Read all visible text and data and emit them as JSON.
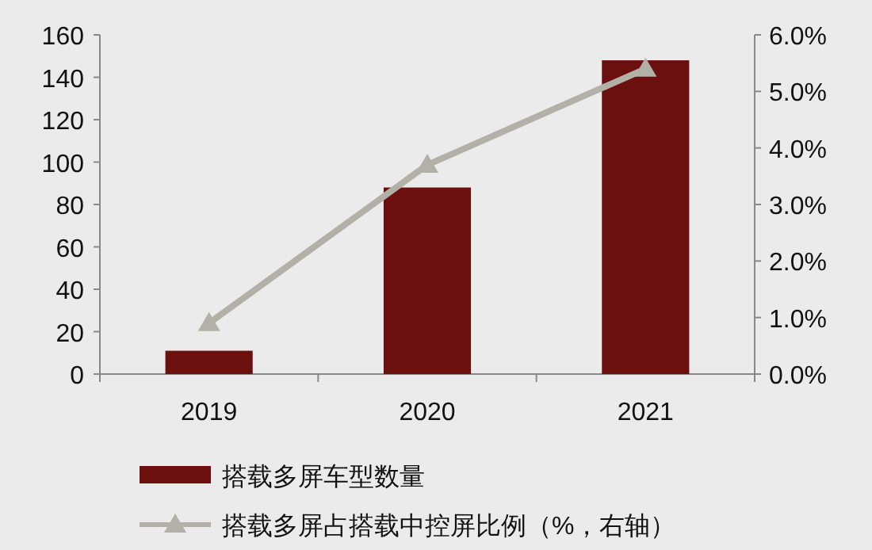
{
  "chart_data": {
    "type": "bar",
    "categories": [
      "2019",
      "2020",
      "2021"
    ],
    "series": [
      {
        "name": "搭载多屏车型数量",
        "color": "#6b0f0f",
        "values": [
          11,
          88,
          148
        ]
      },
      {
        "name": "搭载多屏占搭载中控屏比例（%，右轴）",
        "type": "line",
        "axis": "y2",
        "color": "#b2b1a8",
        "marker": "triangle",
        "values": [
          0.9,
          3.7,
          5.4
        ]
      }
    ],
    "ylim": [
      0,
      160
    ],
    "yticks": [
      0,
      20,
      40,
      60,
      80,
      100,
      120,
      140,
      160
    ],
    "y2lim": [
      0,
      6
    ],
    "y2ticks": [
      {
        "value": 0,
        "label": "0.0%"
      },
      {
        "value": 1,
        "label": "1.0%"
      },
      {
        "value": 2,
        "label": "2.0%"
      },
      {
        "value": 3,
        "label": "3.0%"
      },
      {
        "value": 4,
        "label": "4.0%"
      },
      {
        "value": 5,
        "label": "5.0%"
      },
      {
        "value": 6,
        "label": "6.0%"
      }
    ],
    "grid": false,
    "legend": "bottom"
  }
}
